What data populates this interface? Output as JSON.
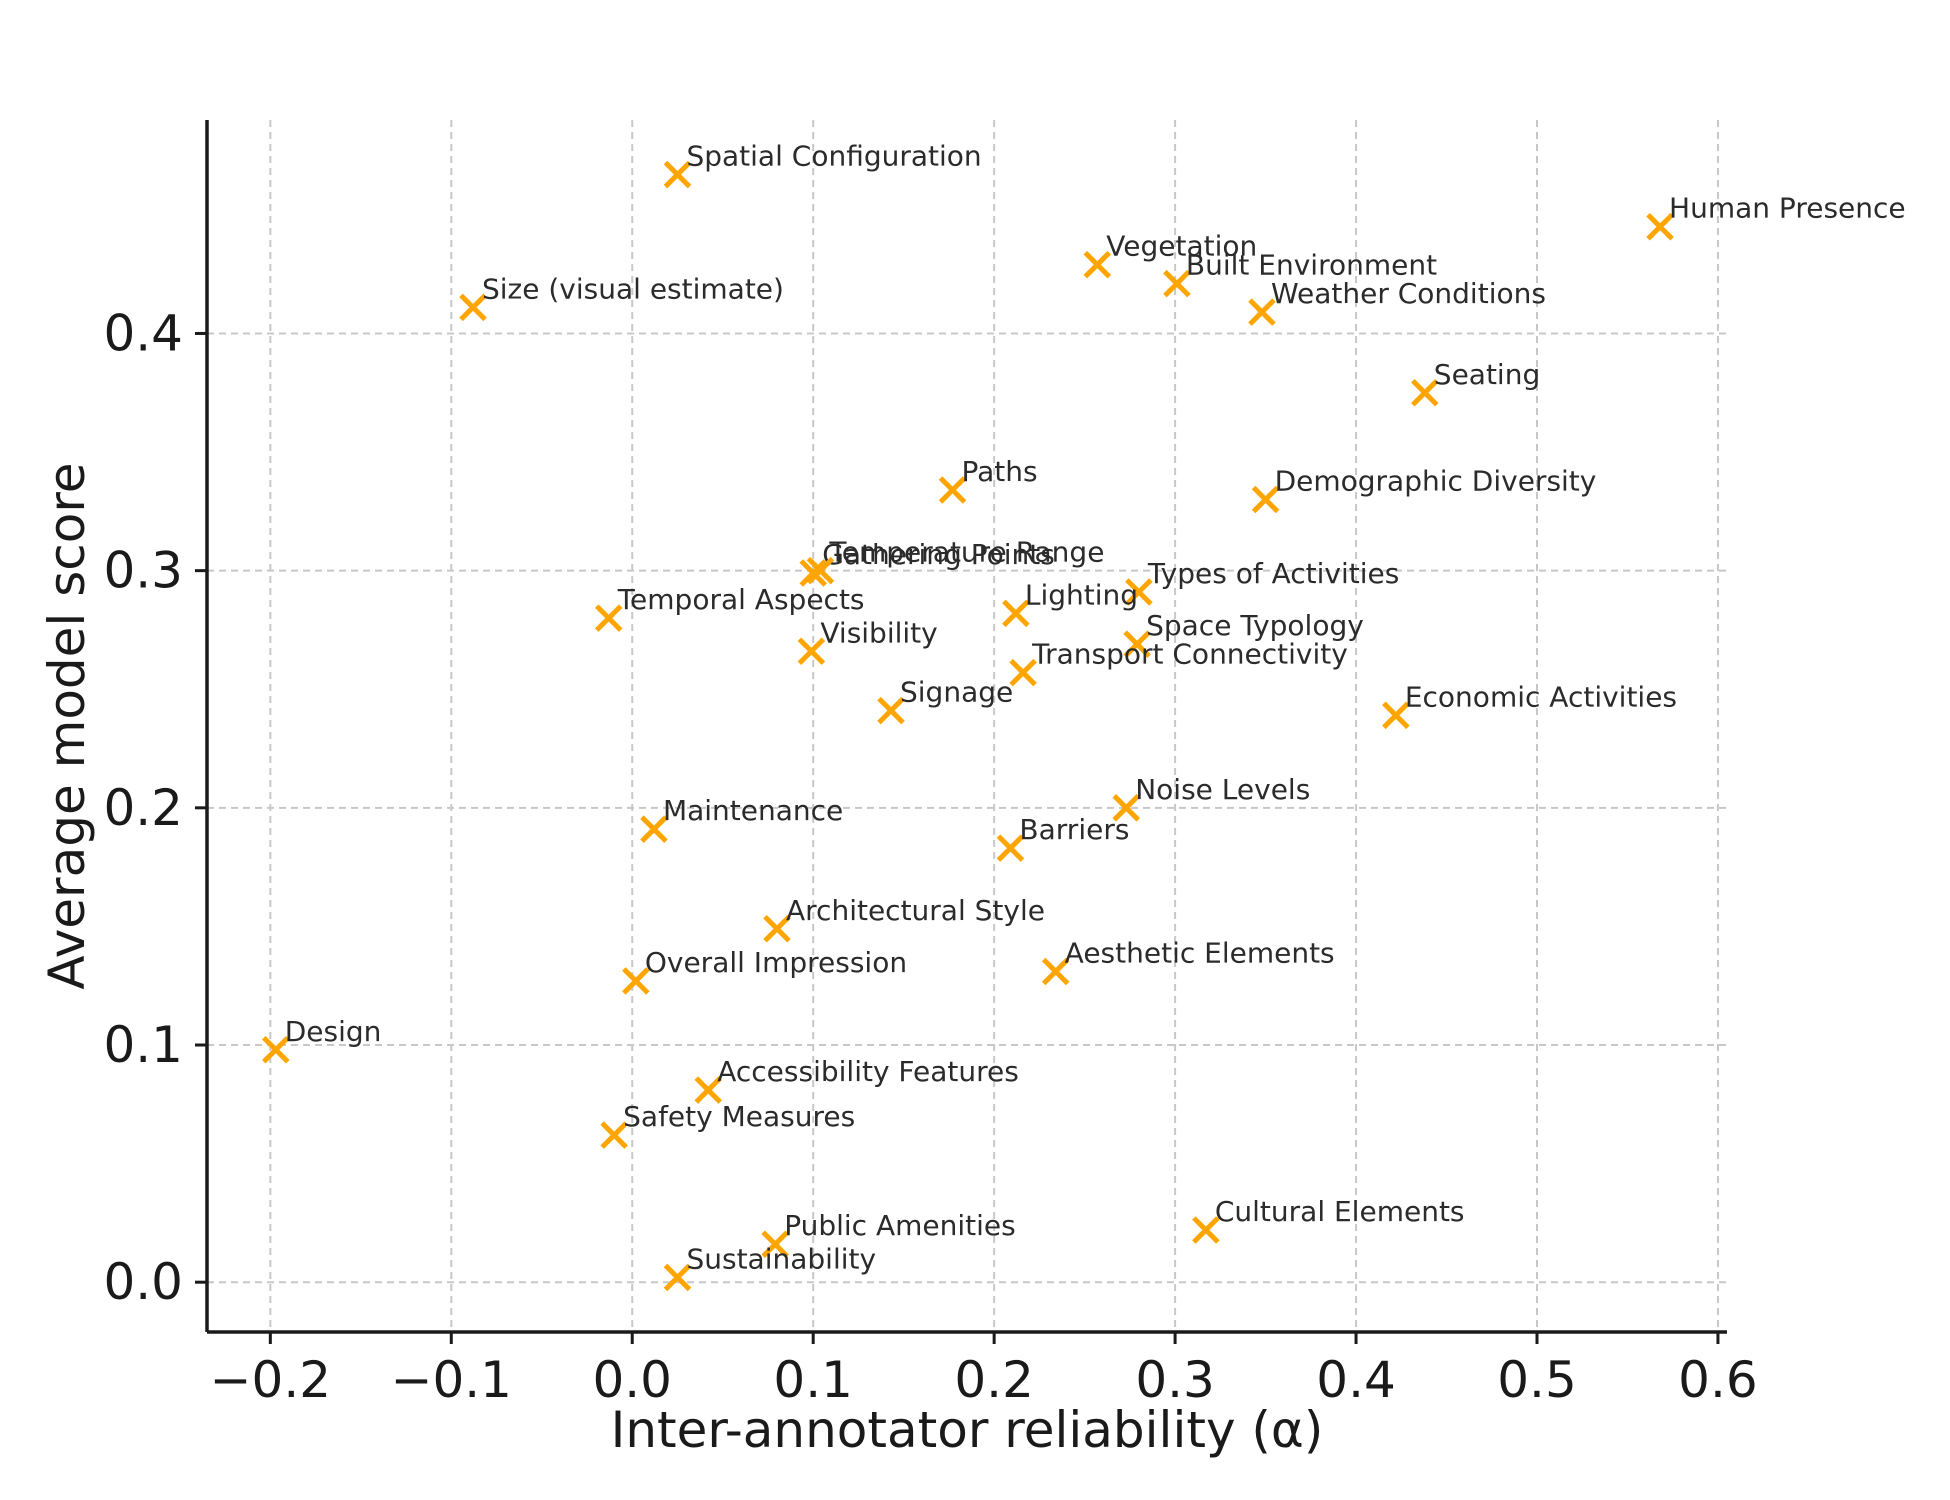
{
  "chart_data": {
    "type": "scatter",
    "title": "",
    "xlabel": "Inter-annotator reliability (α)",
    "ylabel": "Average model score",
    "xlim": [
      -0.235,
      0.605
    ],
    "ylim": [
      -0.021,
      0.49
    ],
    "xticks": [
      -0.2,
      -0.1,
      0.0,
      0.1,
      0.2,
      0.3,
      0.4,
      0.5,
      0.6
    ],
    "xtick_labels": [
      "−0.2",
      "−0.1",
      "0.0",
      "0.1",
      "0.2",
      "0.3",
      "0.4",
      "0.5",
      "0.6"
    ],
    "yticks": [
      0.0,
      0.1,
      0.2,
      0.3,
      0.4
    ],
    "ytick_labels": [
      "0.0",
      "0.1",
      "0.2",
      "0.3",
      "0.4"
    ],
    "grid": true,
    "marker": "x",
    "color": "#FFA500",
    "points": [
      {
        "label": "Spatial Configuration",
        "x": 0.025,
        "y": 0.467
      },
      {
        "label": "Human Presence",
        "x": 0.568,
        "y": 0.445
      },
      {
        "label": "Vegetation",
        "x": 0.257,
        "y": 0.429
      },
      {
        "label": "Built Environment",
        "x": 0.301,
        "y": 0.421
      },
      {
        "label": "Size (visual estimate)",
        "x": -0.088,
        "y": 0.411
      },
      {
        "label": "Weather Conditions",
        "x": 0.348,
        "y": 0.409
      },
      {
        "label": "Seating",
        "x": 0.438,
        "y": 0.375
      },
      {
        "label": "Paths",
        "x": 0.177,
        "y": 0.334
      },
      {
        "label": "Demographic Diversity",
        "x": 0.35,
        "y": 0.33
      },
      {
        "label": "Gathering Points",
        "x": 0.1,
        "y": 0.299
      },
      {
        "label": "Temperature Range",
        "x": 0.104,
        "y": 0.3
      },
      {
        "label": "Types of Activities",
        "x": 0.28,
        "y": 0.291
      },
      {
        "label": "Temporal Aspects",
        "x": -0.013,
        "y": 0.28
      },
      {
        "label": "Lighting",
        "x": 0.212,
        "y": 0.282
      },
      {
        "label": "Space Typology",
        "x": 0.279,
        "y": 0.269
      },
      {
        "label": "Visibility",
        "x": 0.099,
        "y": 0.266
      },
      {
        "label": "Transport Connectivity",
        "x": 0.216,
        "y": 0.257
      },
      {
        "label": "Signage",
        "x": 0.143,
        "y": 0.241
      },
      {
        "label": "Economic Activities",
        "x": 0.422,
        "y": 0.239
      },
      {
        "label": "Noise Levels",
        "x": 0.273,
        "y": 0.2
      },
      {
        "label": "Maintenance",
        "x": 0.012,
        "y": 0.191
      },
      {
        "label": "Barriers",
        "x": 0.209,
        "y": 0.183
      },
      {
        "label": "Architectural Style",
        "x": 0.08,
        "y": 0.149
      },
      {
        "label": "Aesthetic Elements",
        "x": 0.234,
        "y": 0.131
      },
      {
        "label": "Overall Impression",
        "x": 0.002,
        "y": 0.127
      },
      {
        "label": "Design",
        "x": -0.197,
        "y": 0.098
      },
      {
        "label": "Accessibility Features",
        "x": 0.042,
        "y": 0.081
      },
      {
        "label": "Safety Measures",
        "x": -0.01,
        "y": 0.062
      },
      {
        "label": "Cultural Elements",
        "x": 0.317,
        "y": 0.022
      },
      {
        "label": "Public Amenities",
        "x": 0.079,
        "y": 0.016
      },
      {
        "label": "Sustainability",
        "x": 0.025,
        "y": 0.002
      }
    ]
  }
}
